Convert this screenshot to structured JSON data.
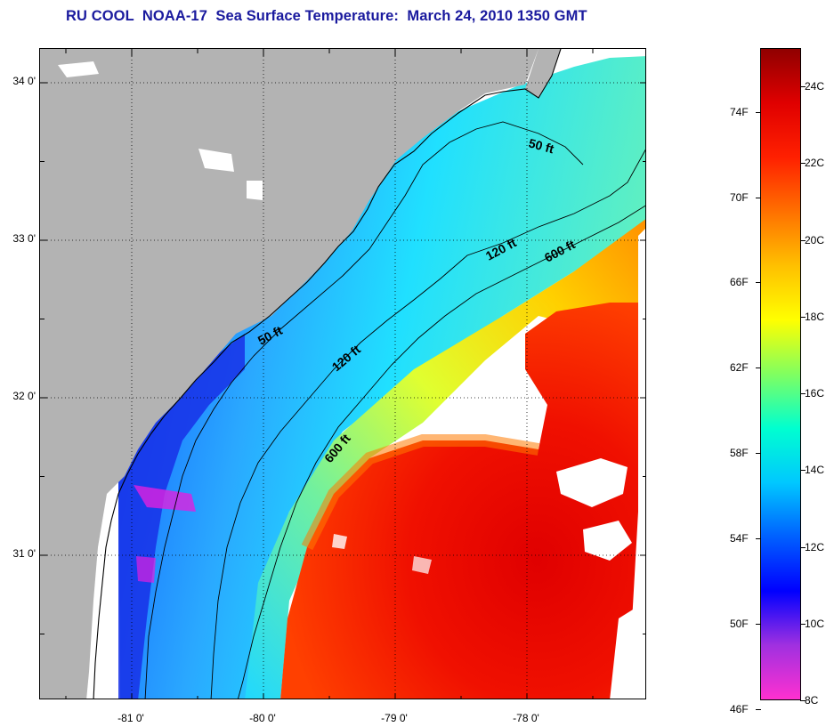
{
  "title": "RU COOL  NOAA-17  Sea Surface Temperature:  March 24, 2010 1350 GMT",
  "map": {
    "lat_ticks": [
      {
        "label": "34 0'",
        "value": 34.0
      },
      {
        "label": "33 0'",
        "value": 33.0
      },
      {
        "label": "32 0'",
        "value": 32.0
      },
      {
        "label": "31 0'",
        "value": 31.0
      }
    ],
    "lon_ticks": [
      {
        "label": "-81 0'",
        "value": -81.0
      },
      {
        "label": "-80 0'",
        "value": -80.0
      },
      {
        "label": "-79 0'",
        "value": -79.0
      },
      {
        "label": "-78 0'",
        "value": -78.0
      }
    ],
    "contours": [
      {
        "label": "50 ft"
      },
      {
        "label": "50 ft"
      },
      {
        "label": "120 ft"
      },
      {
        "label": "120 ft"
      },
      {
        "label": "600 ft"
      },
      {
        "label": "600 ft"
      }
    ],
    "colors": {
      "land": "#b3b3b3",
      "no_data": "#ffffff",
      "coastline": "#000000"
    }
  },
  "colorbar": {
    "celsius": [
      "24C",
      "22C",
      "20C",
      "18C",
      "16C",
      "14C",
      "12C",
      "10C",
      "8C"
    ],
    "fahrenheit": [
      "74F",
      "70F",
      "66F",
      "62F",
      "58F",
      "54F",
      "50F",
      "46F"
    ],
    "range_c": [
      8,
      25
    ],
    "gradient": [
      "#ff30d0",
      "#a030e0",
      "#0000ff",
      "#0060ff",
      "#00c8ff",
      "#00ffd0",
      "#80ff60",
      "#ffff00",
      "#ffc000",
      "#ff7000",
      "#ff2000",
      "#e00000",
      "#900000"
    ]
  }
}
